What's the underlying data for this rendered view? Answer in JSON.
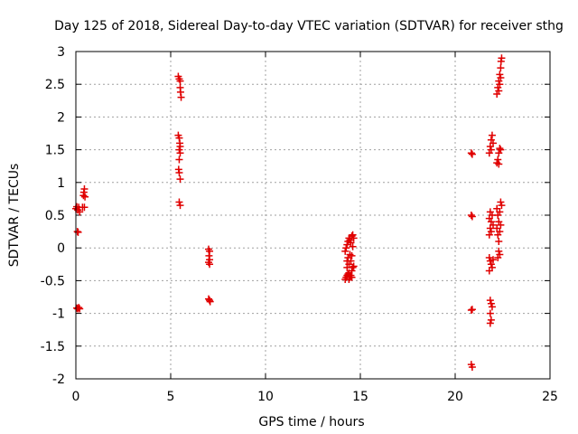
{
  "chart_data": {
    "type": "scatter",
    "title": "Day 125 of 2018, Sidereal Day-to-day VTEC variation (SDTVAR) for receiver sthg",
    "xlabel": "GPS time / hours",
    "ylabel": "SDTVAR / TECUs",
    "xlim": [
      0,
      25
    ],
    "ylim": [
      -2,
      3
    ],
    "xticks": [
      "0",
      "5",
      "10",
      "15",
      "20",
      "25"
    ],
    "yticks": [
      "-2",
      "-1.5",
      "-1",
      "-0.5",
      "0",
      "0.5",
      "1",
      "1.5",
      "2",
      "2.5",
      "3"
    ],
    "grid": true,
    "marker": "+",
    "color": "#e00000",
    "series": [
      {
        "name": "SDTVAR",
        "points": [
          [
            0.0,
            0.6
          ],
          [
            0.05,
            0.63
          ],
          [
            0.1,
            0.58
          ],
          [
            0.15,
            0.62
          ],
          [
            0.2,
            0.55
          ],
          [
            0.08,
            0.25
          ],
          [
            0.12,
            0.24
          ],
          [
            0.05,
            -0.92
          ],
          [
            0.1,
            -0.93
          ],
          [
            0.15,
            -0.91
          ],
          [
            0.2,
            -0.93
          ],
          [
            0.35,
            0.62
          ],
          [
            0.4,
            0.8
          ],
          [
            0.42,
            0.85
          ],
          [
            0.45,
            0.9
          ],
          [
            0.48,
            0.78
          ],
          [
            0.45,
            0.62
          ],
          [
            5.4,
            2.62
          ],
          [
            5.45,
            2.58
          ],
          [
            5.5,
            2.55
          ],
          [
            5.5,
            2.45
          ],
          [
            5.52,
            2.38
          ],
          [
            5.55,
            2.3
          ],
          [
            5.4,
            1.72
          ],
          [
            5.45,
            1.68
          ],
          [
            5.48,
            1.6
          ],
          [
            5.5,
            1.55
          ],
          [
            5.45,
            1.5
          ],
          [
            5.5,
            1.45
          ],
          [
            5.45,
            1.35
          ],
          [
            5.42,
            1.2
          ],
          [
            5.45,
            1.15
          ],
          [
            5.5,
            1.05
          ],
          [
            5.45,
            0.7
          ],
          [
            5.5,
            0.65
          ],
          [
            7.0,
            -0.02
          ],
          [
            7.05,
            -0.05
          ],
          [
            7.02,
            -0.12
          ],
          [
            7.05,
            -0.18
          ],
          [
            7.0,
            -0.22
          ],
          [
            7.05,
            -0.25
          ],
          [
            7.0,
            -0.78
          ],
          [
            7.05,
            -0.8
          ],
          [
            7.08,
            -0.82
          ],
          [
            14.2,
            -0.48
          ],
          [
            14.25,
            -0.45
          ],
          [
            14.3,
            -0.42
          ],
          [
            14.35,
            -0.4
          ],
          [
            14.4,
            -0.38
          ],
          [
            14.45,
            -0.45
          ],
          [
            14.5,
            -0.42
          ],
          [
            14.55,
            -0.35
          ],
          [
            14.6,
            -0.3
          ],
          [
            14.65,
            -0.28
          ],
          [
            14.3,
            -0.2
          ],
          [
            14.35,
            -0.15
          ],
          [
            14.4,
            -0.25
          ],
          [
            14.5,
            -0.2
          ],
          [
            14.55,
            -0.12
          ],
          [
            14.2,
            -0.05
          ],
          [
            14.25,
            0.0
          ],
          [
            14.3,
            0.05
          ],
          [
            14.35,
            0.1
          ],
          [
            14.4,
            0.15
          ],
          [
            14.45,
            0.12
          ],
          [
            14.5,
            0.08
          ],
          [
            14.55,
            0.18
          ],
          [
            14.6,
            0.2
          ],
          [
            14.65,
            0.15
          ],
          [
            14.3,
            -0.3
          ],
          [
            14.45,
            -0.1
          ],
          [
            14.6,
            0.02
          ],
          [
            14.4,
            -0.48
          ],
          [
            14.55,
            -0.45
          ],
          [
            20.85,
            1.45
          ],
          [
            20.9,
            1.43
          ],
          [
            20.85,
            0.5
          ],
          [
            20.9,
            0.48
          ],
          [
            20.85,
            -0.95
          ],
          [
            20.9,
            -0.94
          ],
          [
            20.85,
            -1.78
          ],
          [
            20.9,
            -1.82
          ],
          [
            21.8,
            1.45
          ],
          [
            21.85,
            1.55
          ],
          [
            21.9,
            1.65
          ],
          [
            21.95,
            1.72
          ],
          [
            22.0,
            1.6
          ],
          [
            21.9,
            1.5
          ],
          [
            21.8,
            0.45
          ],
          [
            21.85,
            0.55
          ],
          [
            21.9,
            0.4
          ],
          [
            21.95,
            0.5
          ],
          [
            22.0,
            0.35
          ],
          [
            21.8,
            0.2
          ],
          [
            21.85,
            0.3
          ],
          [
            21.9,
            0.25
          ],
          [
            21.8,
            -0.15
          ],
          [
            21.85,
            -0.2
          ],
          [
            21.9,
            -0.25
          ],
          [
            21.95,
            -0.3
          ],
          [
            21.8,
            -0.35
          ],
          [
            22.0,
            -0.18
          ],
          [
            21.85,
            -0.8
          ],
          [
            21.9,
            -0.85
          ],
          [
            21.95,
            -0.9
          ],
          [
            21.85,
            -1.0
          ],
          [
            21.9,
            -1.1
          ],
          [
            21.85,
            -1.15
          ],
          [
            22.2,
            1.3
          ],
          [
            22.25,
            1.35
          ],
          [
            22.3,
            1.45
          ],
          [
            22.35,
            1.52
          ],
          [
            22.4,
            1.5
          ],
          [
            22.3,
            1.28
          ],
          [
            22.2,
            2.35
          ],
          [
            22.25,
            2.45
          ],
          [
            22.3,
            2.55
          ],
          [
            22.35,
            2.65
          ],
          [
            22.4,
            2.75
          ],
          [
            22.42,
            2.85
          ],
          [
            22.45,
            2.9
          ],
          [
            22.3,
            2.4
          ],
          [
            22.35,
            2.5
          ],
          [
            22.4,
            2.6
          ],
          [
            22.2,
            0.6
          ],
          [
            22.25,
            0.5
          ],
          [
            22.3,
            0.4
          ],
          [
            22.35,
            0.55
          ],
          [
            22.4,
            0.7
          ],
          [
            22.45,
            0.65
          ],
          [
            22.2,
            0.3
          ],
          [
            22.25,
            0.2
          ],
          [
            22.3,
            0.1
          ],
          [
            22.35,
            0.25
          ],
          [
            22.4,
            0.35
          ],
          [
            22.3,
            -0.05
          ],
          [
            22.35,
            -0.1
          ],
          [
            22.25,
            -0.15
          ]
        ]
      }
    ]
  }
}
